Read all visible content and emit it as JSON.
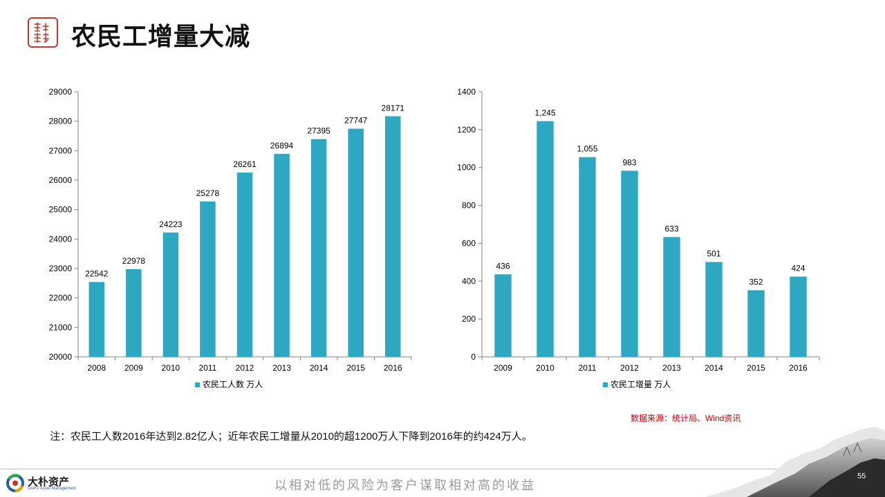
{
  "header": {
    "title": "农民工增量大减"
  },
  "chart_data": [
    {
      "type": "bar",
      "categories": [
        "2008",
        "2009",
        "2010",
        "2011",
        "2012",
        "2013",
        "2014",
        "2015",
        "2016"
      ],
      "series": [
        {
          "name": "农民工人数 万人",
          "values": [
            22542,
            22978,
            24223,
            25278,
            26261,
            26894,
            27395,
            27747,
            28171
          ],
          "labels": [
            "22542",
            "22978",
            "24223",
            "25278",
            "26261",
            "26894",
            "27395",
            "27747",
            "28171"
          ]
        }
      ],
      "ylim": [
        20000,
        29000
      ],
      "yticks": [
        "20000",
        "21000",
        "22000",
        "23000",
        "24000",
        "25000",
        "26000",
        "27000",
        "28000",
        "29000"
      ],
      "legend_label": "农民工人数 万人",
      "legend_position": "bottom",
      "grid": false,
      "color": "#2ea7c1"
    },
    {
      "type": "bar",
      "categories": [
        "2009",
        "2010",
        "2011",
        "2012",
        "2013",
        "2014",
        "2015",
        "2016"
      ],
      "series": [
        {
          "name": "农民工增量 万人",
          "values": [
            436,
            1245,
            1055,
            983,
            633,
            501,
            352,
            424
          ],
          "labels": [
            "436",
            "1,245",
            "1,055",
            "983",
            "633",
            "501",
            "352",
            "424"
          ]
        }
      ],
      "ylim": [
        0,
        1400
      ],
      "yticks": [
        "0",
        "200",
        "400",
        "600",
        "800",
        "1000",
        "1200",
        "1400"
      ],
      "legend_label": "农民工增量 万人",
      "legend_position": "bottom",
      "grid": false,
      "color": "#2ea7c1"
    }
  ],
  "source_text": "数据来源：统计局、Wind资讯",
  "note_text": "注：农民工人数2016年达到2.82亿人；近年农民工增量从2010的超1200万人下降到2016年的约424万人。",
  "footer": {
    "company_name": "大朴资产",
    "company_en": "DAPU Asset Management",
    "slogan": "以相对低的风险为客户谋取相对高的收益",
    "page_number": "55"
  }
}
